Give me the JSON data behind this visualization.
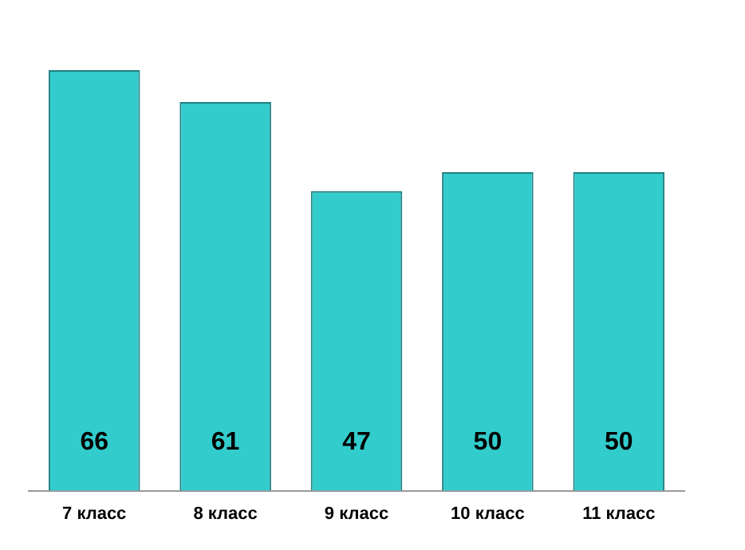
{
  "chart_data": {
    "type": "bar",
    "categories": [
      "7 класс",
      "8 класс",
      "9 класс",
      "10 класс",
      "11 класс"
    ],
    "values": [
      66,
      61,
      47,
      50,
      50
    ],
    "color": "#33cccc",
    "data_labels": true
  }
}
